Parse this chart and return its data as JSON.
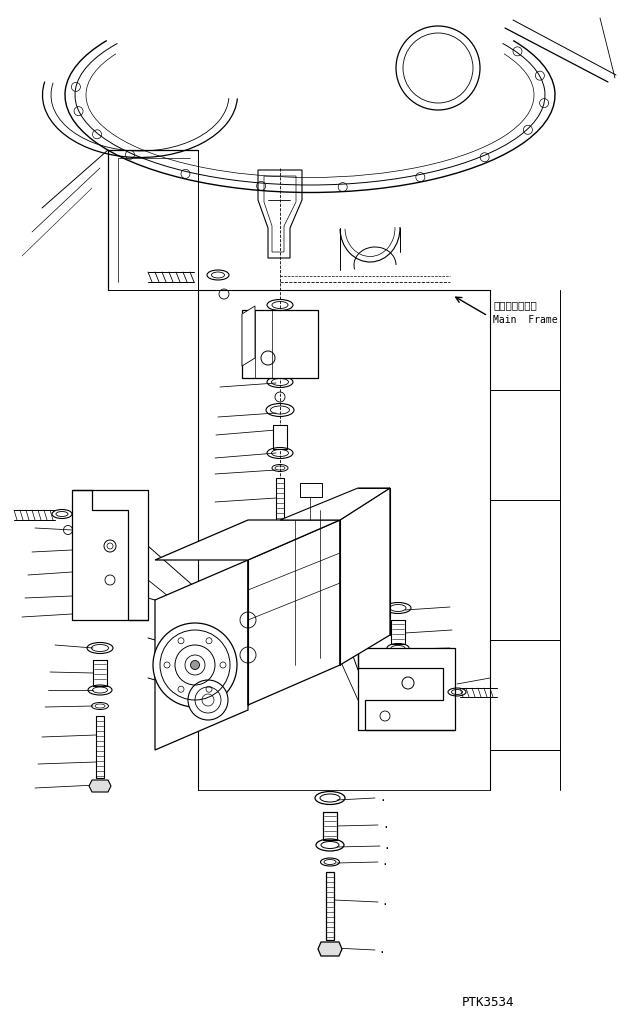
{
  "bg_color": "#ffffff",
  "line_color": "#000000",
  "label_main_frame_jp": "メインフレーム",
  "label_main_frame_en": "Main  Frame",
  "watermark": "PTK3534",
  "fig_width": 6.3,
  "fig_height": 10.16,
  "dpi": 100
}
